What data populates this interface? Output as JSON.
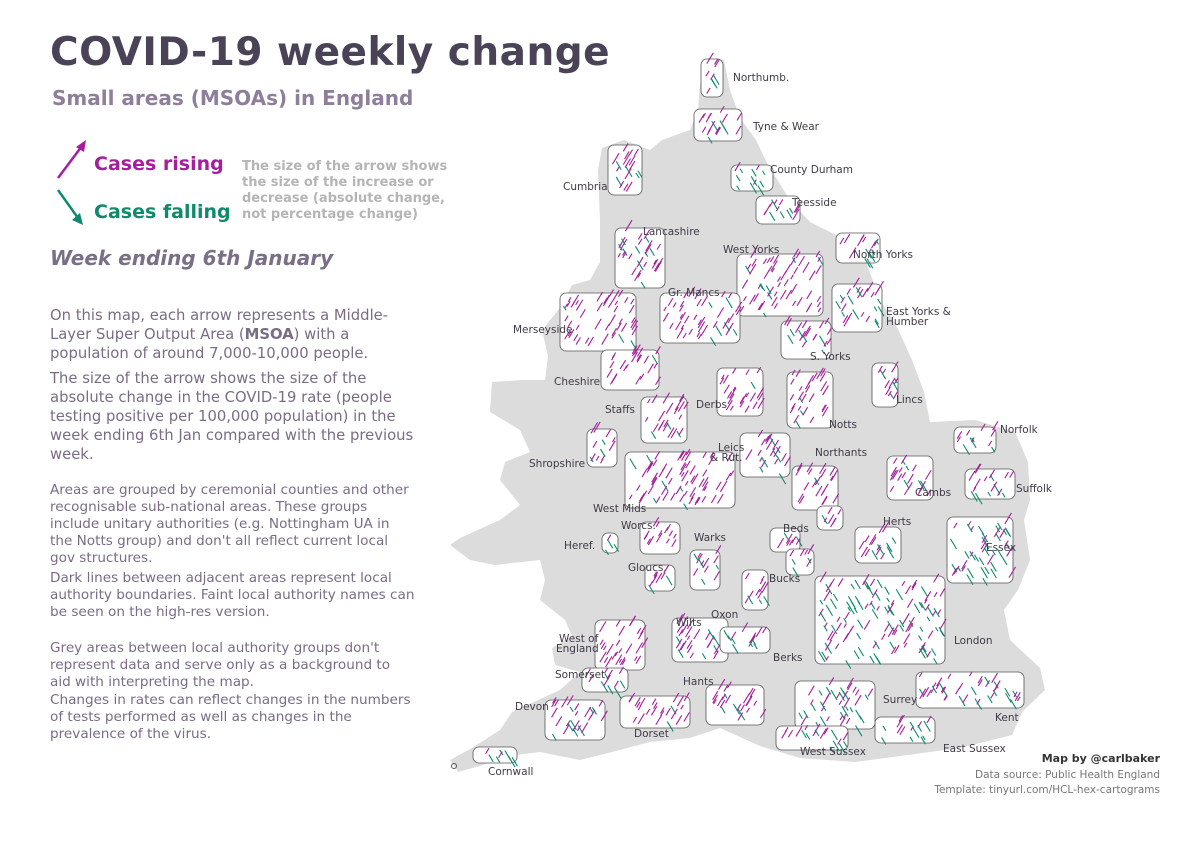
{
  "title": "COVID-19 weekly change",
  "subtitle": "Small areas (MSOAs) in England",
  "legend": {
    "rising_label": "Cases rising",
    "falling_label": "Cases falling",
    "note": "The size of the arrow shows the size of the increase or decrease (absolute change, not percentage change)",
    "rising_color": "#a51e9c",
    "falling_color": "#108a6c"
  },
  "week_label": "Week ending 6th January",
  "paragraphs": {
    "p1_a": "On this map, each arrow represents a Middle-Layer Super Output Area (",
    "p1_b": "MSOA",
    "p1_c": ") with a population of around 7,000-10,000 people.",
    "p2": "The size of the arrow shows the size of the absolute change in the COVID-19 rate (people testing positive per 100,000 population) in the week ending 6th Jan compared with the previous week.",
    "p3": "Areas are grouped by ceremonial counties and other recognisable sub-national areas. These groups include unitary authorities (e.g. Nottingham UA in the Notts group) and don't all reflect current local gov structures.",
    "p4": "Dark lines between adjacent areas represent local authority boundaries. Faint local authority names can be seen on the high-res version.",
    "p5": "Grey areas between local authority groups don't represent data and serve only as a background to aid with interpreting the map.",
    "p6": "Changes in rates can reflect changes in the numbers of tests performed as well as changes in the prevalence of the virus."
  },
  "regions": [
    {
      "name": "Northumb."
    },
    {
      "name": "Tyne & Wear"
    },
    {
      "name": "County Durham"
    },
    {
      "name": "Cumbria"
    },
    {
      "name": "Teesside"
    },
    {
      "name": "Lancashire"
    },
    {
      "name": "West Yorks"
    },
    {
      "name": "North Yorks"
    },
    {
      "name": "Gr. Mancs"
    },
    {
      "name": "East Yorks &"
    },
    {
      "name": "Humber"
    },
    {
      "name": "Merseyside"
    },
    {
      "name": "S. Yorks"
    },
    {
      "name": "Cheshire"
    },
    {
      "name": "Lincs"
    },
    {
      "name": "Staffs"
    },
    {
      "name": "Derbs"
    },
    {
      "name": "Notts"
    },
    {
      "name": "Norfolk"
    },
    {
      "name": "Leics"
    },
    {
      "name": "& Rut."
    },
    {
      "name": "Northants"
    },
    {
      "name": "Shropshire"
    },
    {
      "name": "Suffolk"
    },
    {
      "name": "Cambs"
    },
    {
      "name": "West Mids"
    },
    {
      "name": "Herts"
    },
    {
      "name": "Worcs."
    },
    {
      "name": "Beds"
    },
    {
      "name": "Warks"
    },
    {
      "name": "Essex"
    },
    {
      "name": "Heref."
    },
    {
      "name": "Gloucs."
    },
    {
      "name": "Bucks"
    },
    {
      "name": "Oxon"
    },
    {
      "name": "Wilts"
    },
    {
      "name": "West of"
    },
    {
      "name": "England"
    },
    {
      "name": "London"
    },
    {
      "name": "Berks"
    },
    {
      "name": "Somerset"
    },
    {
      "name": "Hants"
    },
    {
      "name": "Surrey"
    },
    {
      "name": "Devon"
    },
    {
      "name": "Kent"
    },
    {
      "name": "Dorset"
    },
    {
      "name": "West Sussex"
    },
    {
      "name": "East Sussex"
    },
    {
      "name": "Cornwall"
    }
  ],
  "credits": {
    "by": "Map by @carlbaker",
    "source": "Data source: Public Health England",
    "template": "Template: tinyurl.com/HCL-hex-cartograms"
  }
}
